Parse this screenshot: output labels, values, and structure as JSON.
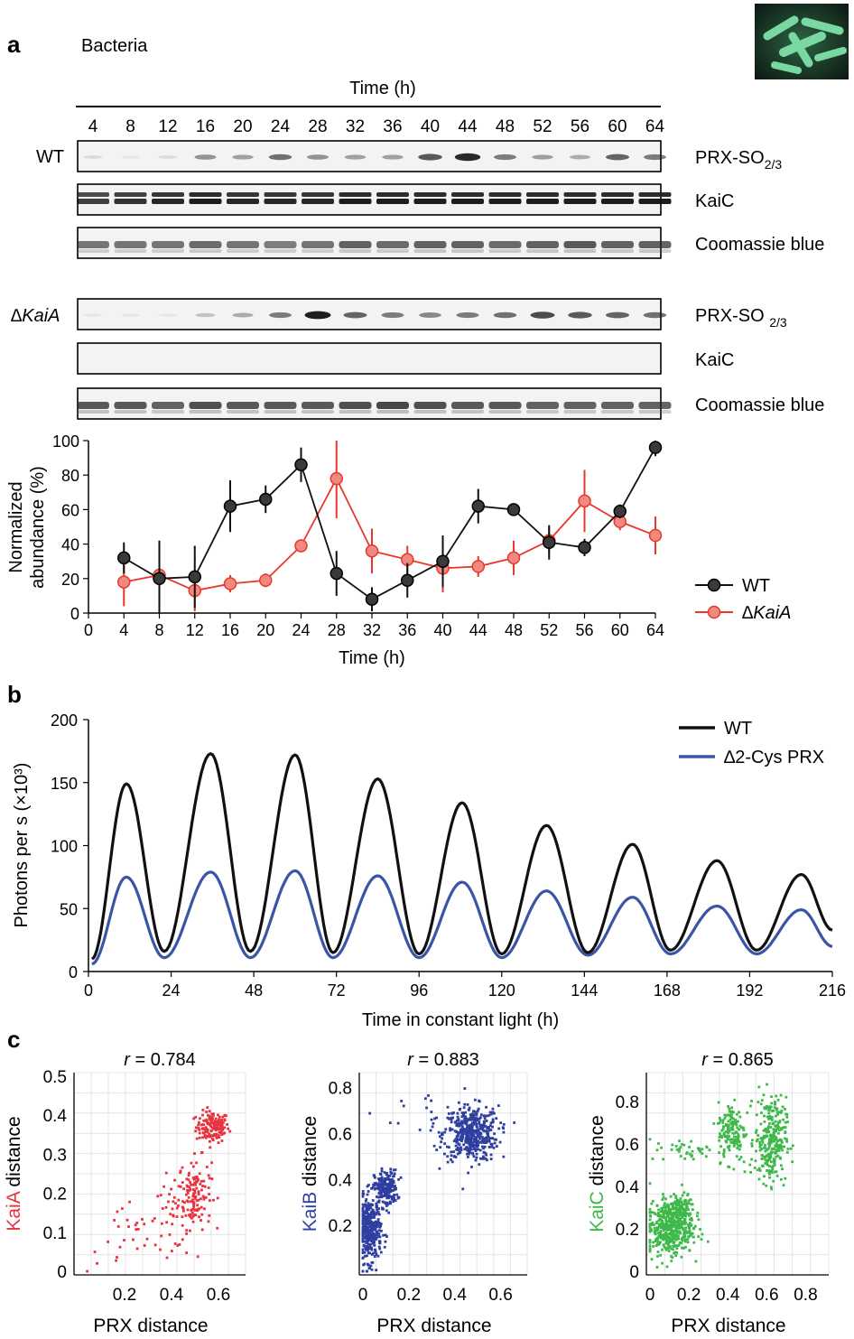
{
  "panel_a": {
    "letter": "a",
    "organism": "Bacteria",
    "time_header": "Time (h)",
    "lane_times": [
      "4",
      "8",
      "12",
      "16",
      "20",
      "24",
      "28",
      "32",
      "36",
      "40",
      "44",
      "48",
      "52",
      "56",
      "60",
      "64"
    ],
    "wt_label": "WT",
    "mutant_label": "∆KaiA",
    "blots": [
      {
        "group": "wt",
        "label_main": "PRX-SO",
        "label_sub": "2/3",
        "kind": "prx",
        "intensity": [
          0.1,
          0.05,
          0.1,
          0.4,
          0.35,
          0.55,
          0.4,
          0.35,
          0.35,
          0.65,
          0.85,
          0.5,
          0.35,
          0.3,
          0.6,
          0.5
        ]
      },
      {
        "group": "wt",
        "label_main": "KaiC",
        "label_sub": "",
        "kind": "kaic",
        "intensity": [
          0.8,
          0.85,
          0.9,
          0.95,
          0.9,
          0.9,
          0.9,
          0.95,
          0.95,
          0.95,
          0.95,
          0.95,
          0.95,
          0.95,
          0.95,
          0.95
        ]
      },
      {
        "group": "wt",
        "label_main": "Coomassie blue",
        "label_sub": "",
        "kind": "coomassie",
        "intensity": [
          0.7,
          0.7,
          0.7,
          0.75,
          0.7,
          0.65,
          0.7,
          0.8,
          0.75,
          0.8,
          0.8,
          0.75,
          0.8,
          0.85,
          0.8,
          0.8
        ]
      },
      {
        "group": "mut",
        "label_main": "PRX-SO ",
        "label_sub": "2/3",
        "kind": "prx",
        "intensity": [
          0.05,
          0.05,
          0.05,
          0.2,
          0.3,
          0.5,
          0.9,
          0.6,
          0.5,
          0.45,
          0.5,
          0.55,
          0.7,
          0.65,
          0.6,
          0.55
        ]
      },
      {
        "group": "mut",
        "label_main": "KaiC",
        "label_sub": "",
        "kind": "empty",
        "intensity": []
      },
      {
        "group": "mut",
        "label_main": "Coomassie blue",
        "label_sub": "",
        "kind": "coomassie",
        "intensity": [
          0.85,
          0.85,
          0.8,
          0.9,
          0.85,
          0.85,
          0.85,
          0.9,
          0.95,
          0.9,
          0.85,
          0.85,
          0.8,
          0.8,
          0.8,
          0.8
        ]
      }
    ],
    "chart_data": {
      "type": "line",
      "x": [
        4,
        8,
        12,
        16,
        20,
        24,
        28,
        32,
        36,
        40,
        44,
        48,
        52,
        56,
        60,
        64
      ],
      "xlabel": "Time (h)",
      "ylabel_line1": "Normalized",
      "ylabel_line2": "abundance (%)",
      "xlim": [
        0,
        64
      ],
      "ylim": [
        0,
        100
      ],
      "xticks": [
        0,
        4,
        8,
        12,
        16,
        20,
        24,
        28,
        32,
        36,
        40,
        44,
        48,
        52,
        56,
        60,
        64
      ],
      "yticks": [
        0,
        20,
        40,
        60,
        80,
        100
      ],
      "series": [
        {
          "name": "WT",
          "color": "#3a3a3a",
          "edge": "#000000",
          "values": [
            32,
            20,
            21,
            62,
            66,
            86,
            23,
            8,
            19,
            30,
            62,
            60,
            41,
            38,
            59,
            96
          ],
          "errors": [
            9,
            22,
            18,
            15,
            8,
            10,
            13,
            7,
            10,
            15,
            10,
            3,
            10,
            5,
            4,
            5
          ]
        },
        {
          "name": "∆KaiA",
          "color": "#f08a80",
          "edge": "#e8372b",
          "values": [
            18,
            22,
            13,
            17,
            19,
            39,
            78,
            36,
            31,
            26,
            27,
            32,
            42,
            65,
            53,
            45
          ],
          "errors": [
            14,
            20,
            12,
            5,
            4,
            3,
            23,
            13,
            8,
            14,
            6,
            10,
            8,
            18,
            5,
            11
          ]
        }
      ],
      "legend_position": "right"
    }
  },
  "panel_b": {
    "letter": "b",
    "chart_data": {
      "type": "line",
      "xlabel": "Time in constant light (h)",
      "ylabel": "Photons per s (×10³)",
      "xlim": [
        0,
        216
      ],
      "ylim": [
        0,
        200
      ],
      "xticks": [
        0,
        24,
        48,
        72,
        96,
        120,
        144,
        168,
        192,
        216
      ],
      "yticks": [
        0,
        50,
        100,
        150,
        200
      ],
      "legend_position": "top-right",
      "series": [
        {
          "name": "WT",
          "color": "#111111",
          "peaks": [
            [
              11,
              149
            ],
            [
              35.5,
              173
            ],
            [
              60,
              172
            ],
            [
              84,
              153
            ],
            [
              108.5,
              134
            ],
            [
              133,
              116
            ],
            [
              158,
              101
            ],
            [
              182.5,
              88
            ],
            [
              207,
              77
            ]
          ],
          "troughs": [
            [
              1,
              10
            ],
            [
              22,
              16
            ],
            [
              47,
              16
            ],
            [
              71,
              15
            ],
            [
              96,
              14
            ],
            [
              120,
              14
            ],
            [
              145,
              15
            ],
            [
              169,
              17
            ],
            [
              194,
              17
            ],
            [
              216,
              33
            ]
          ]
        },
        {
          "name": "∆2-Cys PRX",
          "color": "#3a55a6",
          "peaks": [
            [
              11,
              75
            ],
            [
              35.5,
              79
            ],
            [
              60,
              80
            ],
            [
              84,
              76
            ],
            [
              108.5,
              71
            ],
            [
              133,
              64
            ],
            [
              158,
              59
            ],
            [
              182.5,
              52
            ],
            [
              207,
              49
            ]
          ],
          "troughs": [
            [
              1,
              6
            ],
            [
              22,
              11
            ],
            [
              47,
              11
            ],
            [
              71,
              11
            ],
            [
              96,
              11
            ],
            [
              120,
              11
            ],
            [
              145,
              13
            ],
            [
              169,
              14
            ],
            [
              194,
              14
            ],
            [
              216,
              20
            ]
          ]
        }
      ]
    }
  },
  "panel_c": {
    "letter": "c",
    "xlabel": "PRX distance",
    "ylabel_suffix": " distance",
    "charts": [
      {
        "type": "scatter",
        "r_label": "r",
        "r_value": " = 0.784",
        "protein": "KaiA",
        "color": "#e8323f",
        "xlim": [
          0,
          0.7
        ],
        "ylim": [
          0,
          0.5
        ],
        "xticks": [
          "0.2",
          "0.4",
          "0.6"
        ],
        "xtick_vals": [
          0.2,
          0.4,
          0.6
        ],
        "yticks": [
          "0",
          "0.1",
          "0.2",
          "0.3",
          "0.4",
          "0.5"
        ],
        "ytick_vals": [
          0,
          0.1,
          0.2,
          0.3,
          0.4,
          0.5
        ],
        "clusters": [
          {
            "cx": 0.575,
            "cy": 0.37,
            "sx": 0.035,
            "sy": 0.02,
            "n": 150
          },
          {
            "cx": 0.5,
            "cy": 0.2,
            "sx": 0.035,
            "sy": 0.045,
            "n": 130
          },
          {
            "cx": 0.4,
            "cy": 0.14,
            "sx": 0.05,
            "sy": 0.04,
            "n": 40
          },
          {
            "cx": 0.2,
            "cy": 0.08,
            "sx": 0.08,
            "sy": 0.05,
            "n": 25
          }
        ]
      },
      {
        "type": "scatter",
        "r_label": "r",
        "r_value": " = 0.883",
        "protein": "KaiB",
        "color": "#2e3fa0",
        "xlim": [
          0,
          0.7
        ],
        "ylim": [
          0,
          0.85
        ],
        "xticks": [
          "0",
          "0.2",
          "0.4",
          "0.6"
        ],
        "xtick_vals": [
          0,
          0.2,
          0.4,
          0.6
        ],
        "yticks": [
          "0.2",
          "0.4",
          "0.6",
          "0.8"
        ],
        "ytick_vals": [
          0.2,
          0.4,
          0.6,
          0.8
        ],
        "clusters": [
          {
            "cx": 0.47,
            "cy": 0.6,
            "sx": 0.06,
            "sy": 0.06,
            "n": 450
          },
          {
            "cx": 0.1,
            "cy": 0.36,
            "sx": 0.025,
            "sy": 0.04,
            "n": 200
          },
          {
            "cx": 0.03,
            "cy": 0.18,
            "sx": 0.025,
            "sy": 0.07,
            "n": 350
          },
          {
            "cx": 0.3,
            "cy": 0.7,
            "sx": 0.12,
            "sy": 0.06,
            "n": 15
          }
        ]
      },
      {
        "type": "scatter",
        "r_label": "r",
        "r_value": " = 0.865",
        "protein": "KaiC",
        "color": "#3db94a",
        "xlim": [
          0,
          0.9
        ],
        "ylim": [
          0,
          0.92
        ],
        "xticks": [
          "0",
          "0.2",
          "0.4",
          "0.6",
          "0.8"
        ],
        "xtick_vals": [
          0,
          0.2,
          0.4,
          0.6,
          0.8
        ],
        "yticks": [
          "0",
          "0.2",
          "0.4",
          "0.6",
          "0.8"
        ],
        "ytick_vals": [
          0,
          0.2,
          0.4,
          0.6,
          0.8
        ],
        "clusters": [
          {
            "cx": 0.62,
            "cy": 0.62,
            "sx": 0.04,
            "sy": 0.1,
            "n": 280
          },
          {
            "cx": 0.42,
            "cy": 0.66,
            "sx": 0.035,
            "sy": 0.07,
            "n": 140
          },
          {
            "cx": 0.2,
            "cy": 0.57,
            "sx": 0.1,
            "sy": 0.025,
            "n": 40
          },
          {
            "cx": 0.1,
            "cy": 0.2,
            "sx": 0.06,
            "sy": 0.06,
            "n": 400
          },
          {
            "cx": 0.15,
            "cy": 0.3,
            "sx": 0.04,
            "sy": 0.03,
            "n": 120
          }
        ]
      }
    ]
  },
  "colors": {
    "wt": "#111111",
    "mutant_red": "#e8372b",
    "blue": "#3a55a6",
    "grid": "#e4e4e4"
  }
}
